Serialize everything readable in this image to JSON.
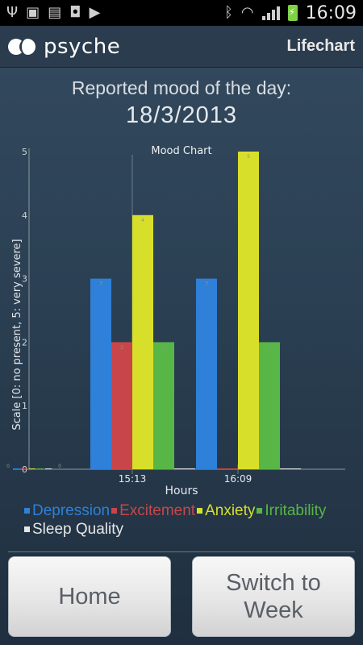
{
  "status_bar": {
    "time": "16:09",
    "icons": [
      "usb-icon",
      "gallery-icon",
      "sd-card-icon",
      "bag-icon",
      "play-icon",
      "bluetooth-icon",
      "wifi-icon",
      "signal-icon",
      "battery-charging-icon"
    ]
  },
  "action_bar": {
    "brand": "psyche",
    "title": "Lifechart"
  },
  "header": {
    "label": "Reported mood of the day:",
    "date": "18/3/2013"
  },
  "chart_data": {
    "type": "bar",
    "title": "Mood Chart",
    "xlabel": "Hours",
    "ylabel": "Scale [0: no present, 5: very severe]",
    "ylim": [
      0,
      5
    ],
    "yticks": [
      "0",
      "1",
      "2",
      "3",
      "4",
      "5"
    ],
    "categories": [
      "",
      "15:13",
      "16:09"
    ],
    "series": [
      {
        "name": "Depression",
        "color": "#2f80d8",
        "values": [
          0,
          3,
          3
        ]
      },
      {
        "name": "Excitement",
        "color": "#c8464a",
        "values": [
          0,
          2,
          0
        ]
      },
      {
        "name": "Anxiety",
        "color": "#d8df2a",
        "values": [
          0,
          4,
          5
        ]
      },
      {
        "name": "Irritability",
        "color": "#58b647",
        "values": [
          0,
          2,
          2
        ]
      },
      {
        "name": "Sleep Quality",
        "color": "#e6e6e6",
        "values": [
          0,
          0,
          0
        ]
      }
    ],
    "grid": false,
    "legend": "bottom"
  },
  "legend": {
    "items": [
      {
        "label": "Depression",
        "color": "#2f80d8"
      },
      {
        "label": "Excitement",
        "color": "#c8464a"
      },
      {
        "label": "Anxiety",
        "color": "#d8df2a"
      },
      {
        "label": "Irritability",
        "color": "#58b647"
      },
      {
        "label": "Sleep Quality",
        "color": "#e6e6e6"
      }
    ]
  },
  "buttons": {
    "home": "Home",
    "week": "Switch to Week"
  }
}
